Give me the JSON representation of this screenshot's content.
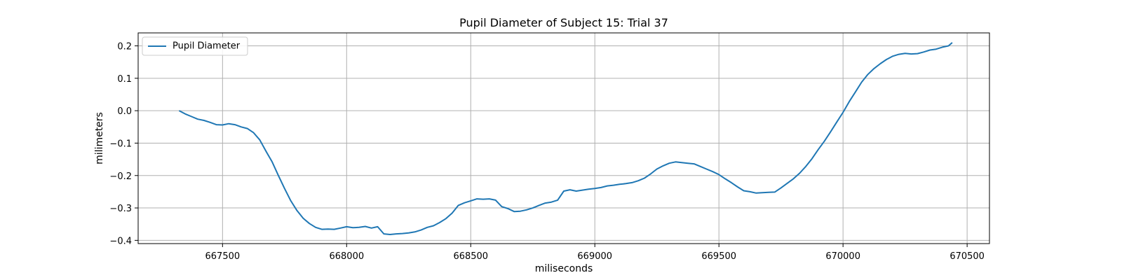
{
  "chart_data": {
    "type": "line",
    "title": "Pupil Diameter of Subject 15: Trial 37",
    "xlabel": "miliseconds",
    "ylabel": "milimeters",
    "xlim": [
      667160,
      670590
    ],
    "ylim": [
      -0.41,
      0.24
    ],
    "xticks": [
      667500,
      668000,
      668500,
      669000,
      669500,
      670000,
      670500
    ],
    "xtick_labels": [
      "667500",
      "668000",
      "668500",
      "669000",
      "669500",
      "670000",
      "670500"
    ],
    "yticks": [
      0.2,
      0.1,
      0.0,
      -0.1,
      -0.2,
      -0.3,
      -0.4
    ],
    "ytick_labels": [
      "0.2",
      "0.1",
      "0.0",
      "−0.1",
      "−0.2",
      "−0.3",
      "−0.4"
    ],
    "grid": true,
    "legend_position": "top-left",
    "series": [
      {
        "name": "Pupil Diameter",
        "color": "#1f77b4",
        "x": [
          667325,
          667350,
          667375,
          667400,
          667425,
          667450,
          667475,
          667500,
          667525,
          667550,
          667575,
          667600,
          667625,
          667650,
          667675,
          667700,
          667725,
          667750,
          667775,
          667800,
          667825,
          667850,
          667875,
          667900,
          667925,
          667950,
          667975,
          668000,
          668025,
          668050,
          668075,
          668100,
          668125,
          668150,
          668175,
          668200,
          668225,
          668250,
          668275,
          668300,
          668325,
          668350,
          668375,
          668400,
          668425,
          668450,
          668475,
          668500,
          668525,
          668550,
          668575,
          668600,
          668625,
          668650,
          668675,
          668700,
          668725,
          668750,
          668775,
          668800,
          668825,
          668850,
          668875,
          668900,
          668925,
          668950,
          668975,
          669000,
          669025,
          669050,
          669075,
          669100,
          669125,
          669150,
          669175,
          669200,
          669225,
          669250,
          669275,
          669300,
          669325,
          669350,
          669375,
          669400,
          669425,
          669450,
          669475,
          669500,
          669525,
          669550,
          669575,
          669600,
          669625,
          669650,
          669675,
          669700,
          669725,
          669750,
          669775,
          669800,
          669825,
          669850,
          669875,
          669900,
          669925,
          669950,
          669975,
          670000,
          670025,
          670050,
          670075,
          670100,
          670125,
          670150,
          670175,
          670200,
          670225,
          670250,
          670275,
          670300,
          670325,
          670350,
          670375,
          670400,
          670425,
          670440
        ],
        "y": [
          0.0,
          -0.01,
          -0.018,
          -0.026,
          -0.03,
          -0.036,
          -0.043,
          -0.044,
          -0.04,
          -0.043,
          -0.05,
          -0.055,
          -0.068,
          -0.09,
          -0.125,
          -0.158,
          -0.2,
          -0.24,
          -0.278,
          -0.308,
          -0.332,
          -0.348,
          -0.36,
          -0.366,
          -0.365,
          -0.366,
          -0.362,
          -0.358,
          -0.361,
          -0.36,
          -0.357,
          -0.362,
          -0.358,
          -0.38,
          -0.382,
          -0.38,
          -0.379,
          -0.377,
          -0.374,
          -0.368,
          -0.36,
          -0.355,
          -0.345,
          -0.333,
          -0.316,
          -0.292,
          -0.284,
          -0.278,
          -0.272,
          -0.273,
          -0.272,
          -0.276,
          -0.296,
          -0.302,
          -0.311,
          -0.31,
          -0.306,
          -0.3,
          -0.292,
          -0.285,
          -0.282,
          -0.276,
          -0.248,
          -0.244,
          -0.248,
          -0.245,
          -0.242,
          -0.24,
          -0.237,
          -0.232,
          -0.23,
          -0.227,
          -0.225,
          -0.222,
          -0.216,
          -0.208,
          -0.195,
          -0.18,
          -0.17,
          -0.162,
          -0.158,
          -0.16,
          -0.162,
          -0.164,
          -0.172,
          -0.18,
          -0.188,
          -0.197,
          -0.21,
          -0.222,
          -0.235,
          -0.247,
          -0.25,
          -0.254,
          -0.253,
          -0.252,
          -0.251,
          -0.238,
          -0.224,
          -0.21,
          -0.193,
          -0.172,
          -0.148,
          -0.12,
          -0.094,
          -0.065,
          -0.035,
          -0.005,
          0.028,
          0.058,
          0.088,
          0.112,
          0.13,
          0.145,
          0.158,
          0.168,
          0.174,
          0.177,
          0.175,
          0.176,
          0.181,
          0.187,
          0.19,
          0.196,
          0.2,
          0.21
        ]
      }
    ]
  }
}
